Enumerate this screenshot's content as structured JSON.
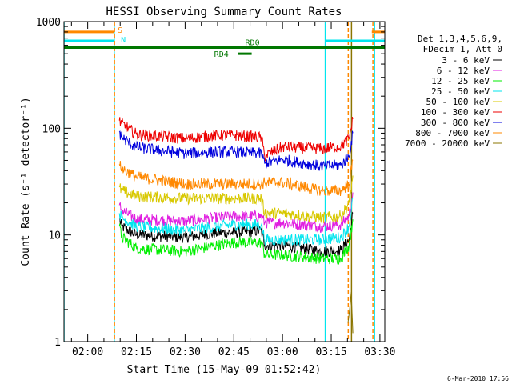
{
  "chart_data": {
    "type": "line",
    "title": "HESSI Observing Summary Count Rates",
    "xlabel": "Start Time (15-May-09 01:52:42)",
    "ylabel": "Count Rate (s⁻¹ detector⁻¹)",
    "y_scale": "log",
    "xlim": [
      "01:52:42",
      "03:31:30"
    ],
    "ylim": [
      1,
      1000
    ],
    "x_tick_labels": [
      "02:00",
      "02:15",
      "02:30",
      "02:45",
      "03:00",
      "03:15",
      "03:30"
    ],
    "y_tick_labels": [
      "1",
      "10",
      "100",
      "1000"
    ],
    "legend_header": [
      "Det 1,3,4,5,6,9,",
      "FDecim 1, Att 0"
    ],
    "legend_position": "right",
    "timestamp": "6-Mar-2010 17:56",
    "series": [
      {
        "name": "3 - 6 keV",
        "color": "#000000",
        "x": [
          "02:09:45",
          "02:10:30",
          "02:15:00",
          "02:30:00",
          "02:40:00",
          "02:45:00",
          "02:53:30",
          "02:54:30",
          "03:00:00",
          "03:12:00",
          "03:18:00",
          "03:20:30",
          "03:21:40"
        ],
        "y": [
          14,
          12,
          10,
          9.5,
          10.5,
          10.5,
          11,
          8,
          8,
          7,
          7.2,
          9,
          16
        ]
      },
      {
        "name": "6 - 12 keV",
        "color": "#e01ee0",
        "x": [
          "02:09:45",
          "02:10:30",
          "02:15:00",
          "02:30:00",
          "02:40:00",
          "02:45:00",
          "02:53:30",
          "02:54:30",
          "03:00:00",
          "03:12:00",
          "03:18:00",
          "03:20:30",
          "03:21:40"
        ],
        "y": [
          19,
          17,
          14,
          13.5,
          14.5,
          15,
          15,
          13,
          13,
          12,
          12.5,
          15,
          25
        ]
      },
      {
        "name": "12 - 25 keV",
        "color": "#00ee00",
        "x": [
          "02:09:45",
          "02:10:30",
          "02:15:00",
          "02:30:00",
          "02:40:00",
          "02:45:00",
          "02:53:30",
          "02:54:30",
          "03:00:00",
          "03:12:00",
          "03:18:00",
          "03:20:30",
          "03:21:40"
        ],
        "y": [
          12,
          9.5,
          7.5,
          7,
          8,
          8.5,
          8.5,
          6.5,
          6.5,
          6,
          6,
          8,
          14
        ]
      },
      {
        "name": "25 - 50 keV",
        "color": "#00e5ee",
        "x": [
          "02:09:45",
          "02:10:30",
          "02:15:00",
          "02:30:00",
          "02:40:00",
          "02:45:00",
          "02:53:30",
          "02:54:30",
          "03:00:00",
          "03:12:00",
          "03:18:00",
          "03:20:30",
          "03:21:40"
        ],
        "y": [
          16,
          14.5,
          12,
          11,
          12,
          12.5,
          12.5,
          9,
          9,
          9,
          9.5,
          12,
          22
        ]
      },
      {
        "name": "50 - 100 keV",
        "color": "#d8c800",
        "x": [
          "02:09:45",
          "02:10:30",
          "02:15:00",
          "02:30:00",
          "02:45:00",
          "02:53:30",
          "02:54:30",
          "03:00:00",
          "03:12:00",
          "03:18:00",
          "03:20:30",
          "03:21:40"
        ],
        "y": [
          28,
          26,
          23,
          22,
          22,
          22,
          16,
          16,
          14.5,
          15,
          20,
          36
        ]
      },
      {
        "name": "100 - 300 keV",
        "color": "#ee0000",
        "x": [
          "02:09:45",
          "02:10:30",
          "02:15:00",
          "02:30:00",
          "02:40:00",
          "02:45:00",
          "02:53:30",
          "02:54:30",
          "03:00:00",
          "03:12:00",
          "03:18:00",
          "03:20:30",
          "03:21:40"
        ],
        "y": [
          118,
          110,
          88,
          80,
          86,
          86,
          82,
          55,
          67,
          64,
          68,
          80,
          122
        ]
      },
      {
        "name": "300 - 800 keV",
        "color": "#0000dd",
        "x": [
          "02:09:45",
          "02:10:30",
          "02:15:00",
          "02:30:00",
          "02:40:00",
          "02:45:00",
          "02:53:30",
          "02:54:30",
          "03:00:00",
          "03:12:00",
          "03:18:00",
          "03:20:30",
          "03:21:40"
        ],
        "y": [
          92,
          82,
          66,
          58,
          60,
          60,
          58,
          47,
          51,
          44,
          45,
          55,
          90
        ]
      },
      {
        "name": "800 - 7000 keV",
        "color": "#ff8800",
        "x": [
          "02:09:45",
          "02:10:30",
          "02:15:00",
          "02:30:00",
          "02:45:00",
          "02:53:30",
          "02:54:30",
          "03:00:00",
          "03:12:00",
          "03:18:00",
          "03:20:30",
          "03:21:40"
        ],
        "y": [
          46,
          42,
          35,
          30,
          30,
          30,
          31,
          31,
          26,
          26,
          30,
          50
        ]
      },
      {
        "name": "7000 - 20000 keV",
        "color": "#8b7500",
        "x": [
          "03:20:10",
          "03:20:40",
          "03:21:10",
          "03:21:40"
        ],
        "y": [
          1.5,
          2.0,
          2.9,
          1.2
        ]
      }
    ],
    "flags": [
      {
        "label": "S",
        "color": "#ff8800",
        "value": 800
      },
      {
        "label": "N",
        "color": "#00e5ee",
        "value": 660
      },
      {
        "label": "RD0",
        "color": "#007700",
        "value": 570
      },
      {
        "label": "RD4",
        "color": "#007700",
        "value": 500
      }
    ],
    "segments": [
      {
        "flag": "S",
        "from": "01:52:42",
        "to": "02:08:10"
      },
      {
        "flag": "S",
        "from": "03:27:30",
        "to": "03:31:30"
      },
      {
        "flag": "N",
        "from": "01:52:42",
        "to": "02:08:10"
      },
      {
        "flag": "N",
        "from": "03:13:10",
        "to": "03:31:30"
      },
      {
        "flag": "RD0",
        "from": "01:52:42",
        "to": "03:31:30"
      },
      {
        "flag": "RD4",
        "from": "02:46:20",
        "to": "02:50:30"
      }
    ],
    "vertical_markers": [
      {
        "x": "01:52:42",
        "color": "#00e5ee",
        "style": "solid"
      },
      {
        "x": "02:08:10",
        "color": "#00e5ee",
        "style": "solid"
      },
      {
        "x": "02:08:15",
        "color": "#ff8800",
        "style": "dashed"
      },
      {
        "x": "03:13:10",
        "color": "#00e5ee",
        "style": "solid"
      },
      {
        "x": "03:20:15",
        "color": "#ff8800",
        "style": "dashed"
      },
      {
        "x": "03:21:15",
        "color": "#8b7500",
        "style": "solid"
      },
      {
        "x": "03:27:50",
        "color": "#ff8800",
        "style": "dashed"
      },
      {
        "x": "03:28:20",
        "color": "#00e5ee",
        "style": "solid"
      }
    ]
  }
}
